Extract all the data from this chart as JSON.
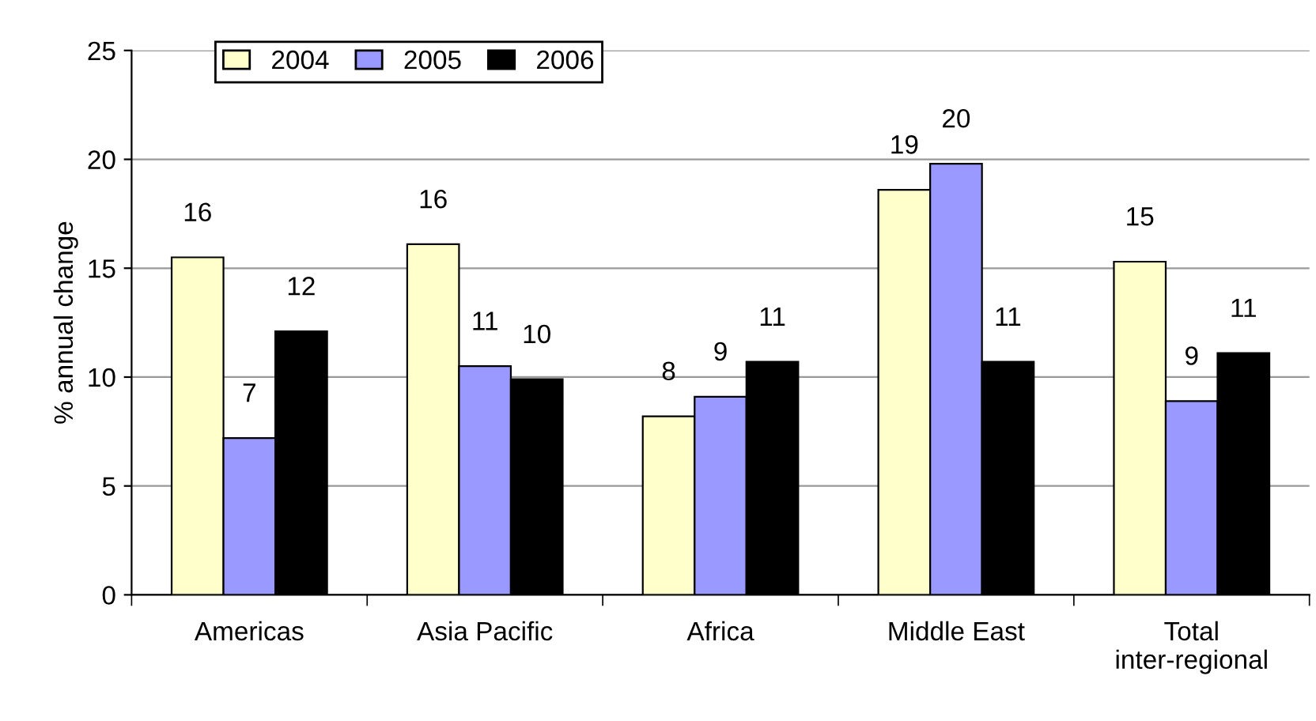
{
  "chart_data": {
    "type": "bar",
    "ylabel": "% annual change",
    "categories": [
      "Americas",
      "Asia Pacific",
      "Africa",
      "Middle East",
      "Total\ninter-regional"
    ],
    "series": [
      {
        "name": "2004",
        "color": "#ffffcc",
        "values": [
          15.5,
          16.1,
          8.2,
          18.6,
          15.3
        ],
        "value_labels": [
          "16",
          "16",
          "8",
          "19",
          "15"
        ]
      },
      {
        "name": "2005",
        "color": "#9999ff",
        "values": [
          7.2,
          10.5,
          9.1,
          19.8,
          8.9
        ],
        "value_labels": [
          "7",
          "11",
          "9",
          "20",
          "9"
        ]
      },
      {
        "name": "2006",
        "color": "#000000",
        "values": [
          12.1,
          9.9,
          10.7,
          10.7,
          11.1
        ],
        "value_labels": [
          "12",
          "10",
          "11",
          "11",
          "11"
        ]
      }
    ],
    "ylim": [
      0,
      25
    ],
    "yticks": [
      0,
      5,
      10,
      15,
      20,
      25
    ],
    "grid": "y",
    "legend": "top left"
  }
}
